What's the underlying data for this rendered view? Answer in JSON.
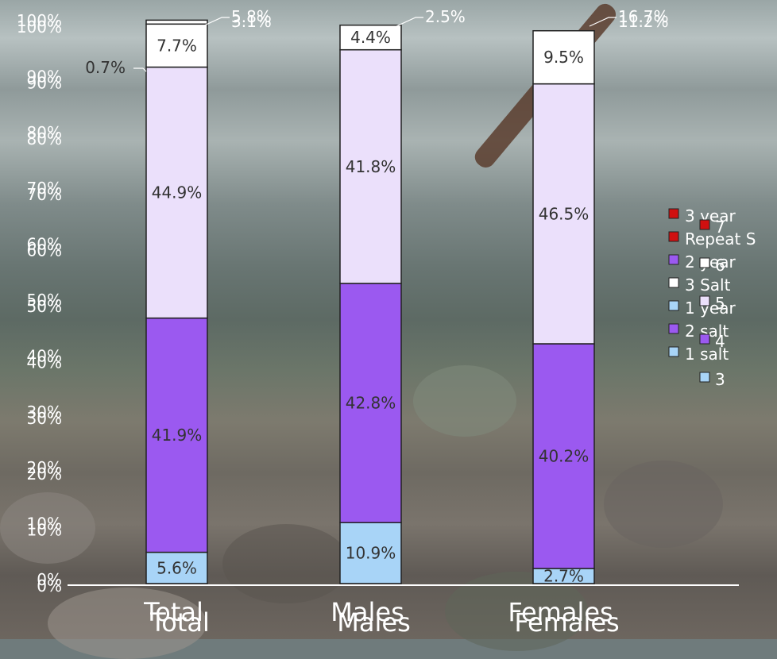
{
  "chart_data": {
    "type": "bar",
    "stacked": true,
    "normalized": true,
    "categories": [
      "Total",
      "Males",
      "Females"
    ],
    "ylim": [
      0,
      100
    ],
    "yticks": [
      "0%",
      "10%",
      "20%",
      "30%",
      "40%",
      "50%",
      "60%",
      "70%",
      "80%",
      "90%",
      "100%"
    ],
    "series": [
      {
        "name": "1 salt",
        "color": "#a8d4f7",
        "values": [
          5.6,
          10.9,
          2.7
        ],
        "labels": [
          "5.6%",
          "10.9%",
          "2.7%"
        ]
      },
      {
        "name": "2 salt",
        "color": "#9b59f0",
        "values": [
          41.9,
          42.8,
          40.2
        ],
        "labels": [
          "41.9%",
          "42.8%",
          "40.2%"
        ]
      },
      {
        "name": "3 Salt",
        "color": "#ebe0fb",
        "values": [
          44.9,
          41.8,
          46.5
        ],
        "labels": [
          "44.9%",
          "41.8%",
          "46.5%"
        ]
      },
      {
        "name": "Repeat S",
        "color": "#ffffff",
        "values": [
          7.7,
          4.4,
          9.5
        ],
        "labels": [
          "7.7%",
          "4.4%",
          "9.5%"
        ]
      },
      {
        "name": "",
        "color": "#ffffff",
        "values": [
          0.7,
          0,
          0
        ],
        "labels": [
          "0.7%",
          "",
          ""
        ]
      }
    ],
    "callouts": [
      {
        "category": 0,
        "labels": [
          "5.8%",
          "3.1%"
        ]
      },
      {
        "category": 1,
        "labels": [
          "2.5%"
        ]
      },
      {
        "category": 2,
        "labels": [
          "16.7%",
          "11.2%"
        ]
      }
    ],
    "legend": {
      "position": "right",
      "left_items": [
        {
          "label": "3 year",
          "color": "#d01010"
        },
        {
          "label": "Repeat S",
          "color": "#d01010"
        },
        {
          "label": "2 year",
          "color": "#9b59f0"
        },
        {
          "label": "3 Salt",
          "color": "#ffffff"
        },
        {
          "label": "1 year",
          "color": "#a8d4f7"
        },
        {
          "label": "2 salt",
          "color": "#9b59f0"
        },
        {
          "label": "1 salt",
          "color": "#a8d4f7"
        }
      ],
      "right_items": [
        {
          "label": "7",
          "color": "#d01010"
        },
        {
          "label": "6",
          "color": "#ffffff"
        },
        {
          "label": "5",
          "color": "#ebe0fb"
        },
        {
          "label": "4",
          "color": "#9b59f0"
        },
        {
          "label": "3",
          "color": "#a8d4f7"
        }
      ]
    }
  }
}
